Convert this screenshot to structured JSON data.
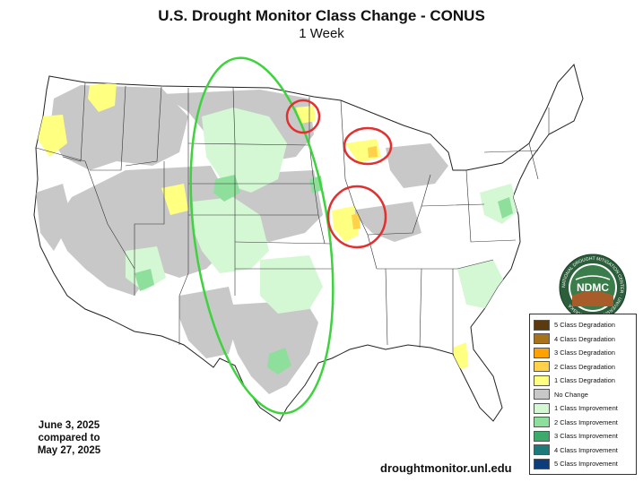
{
  "map": {
    "title": "U.S. Drought Monitor Class Change - CONUS",
    "subtitle": "1 Week",
    "date": {
      "current": "June 3, 2025",
      "compared_label": "compared to",
      "previous": "May 27, 2025"
    },
    "source_url": "droughtmonitor.unl.edu",
    "logo": {
      "center_text": "NDMC",
      "ring_text": "NATIONAL DROUGHT MITIGATION CENTER · UNIVERSITY OF NEBRASKA"
    },
    "legend": [
      {
        "label": "5 Class Degradation",
        "color": "#5c3a10"
      },
      {
        "label": "4 Class Degradation",
        "color": "#a8721a"
      },
      {
        "label": "3 Class Degradation",
        "color": "#ffa200"
      },
      {
        "label": "2 Class Degradation",
        "color": "#ffd24a"
      },
      {
        "label": "1 Class Degradation",
        "color": "#ffff80"
      },
      {
        "label": "No Change",
        "color": "#c8c8c8"
      },
      {
        "label": "1 Class Improvement",
        "color": "#d4f7d4"
      },
      {
        "label": "2 Class Improvement",
        "color": "#8fdf9c"
      },
      {
        "label": "3 Class Improvement",
        "color": "#3caa6a"
      },
      {
        "label": "4 Class Improvement",
        "color": "#1c7a7a"
      },
      {
        "label": "5 Class Improvement",
        "color": "#0a3d7a"
      }
    ],
    "annotation_colors": {
      "green_ellipse": "#3fd23f",
      "red_circle": "#e03030"
    }
  }
}
